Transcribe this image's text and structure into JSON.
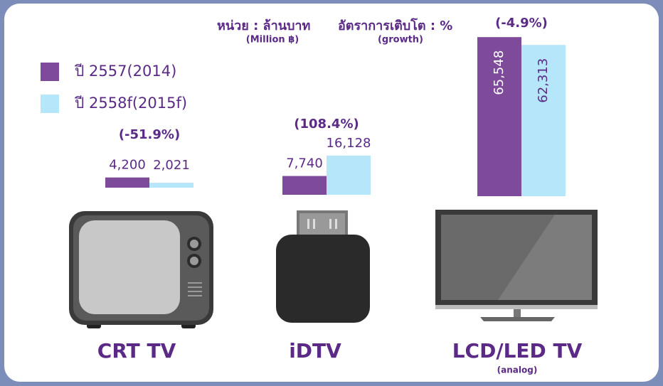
{
  "chart_data": {
    "type": "bar",
    "unit_label": "หน่วย : ล้านบาท",
    "unit_label_en": "(Million ฿)",
    "growth_label": "อัตราการเติบโต : %",
    "growth_label_en": "(growth)",
    "categories": [
      "CRT TV",
      "iDTV",
      "LCD/LED TV"
    ],
    "category_notes": [
      null,
      null,
      "(analog)"
    ],
    "growth": [
      "(-51.9%)",
      "(108.4%)",
      "(-4.9%)"
    ],
    "series": [
      {
        "name": "ปี 2557(2014)",
        "color": "#7e4a9a",
        "values": [
          4200,
          7740,
          65548
        ],
        "value_labels": [
          "4,200",
          "7,740",
          "65,548"
        ]
      },
      {
        "name": "ปี 2558f(2015f)",
        "color": "#b5e6f9",
        "values": [
          2021,
          16128,
          62313
        ],
        "value_labels": [
          "2,021",
          "16,128",
          "62,313"
        ]
      }
    ],
    "ylim": [
      0,
      70000
    ]
  }
}
